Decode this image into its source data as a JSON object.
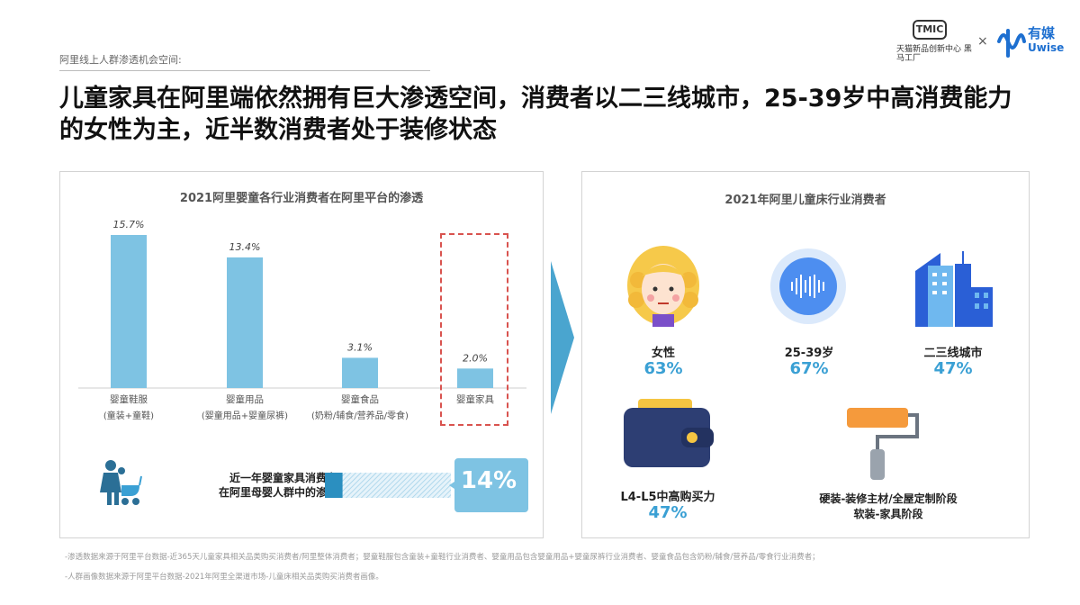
{
  "header": {
    "section_label": "阿里线上人群渗透机会空间:",
    "logo_tmic": "TMIC",
    "logo_tmic_sub": "天猫新品创新中心 黑马工厂",
    "cross": "×",
    "logo_uwise_cn": "有媒",
    "logo_uwise_en": "Uwise"
  },
  "headline": "儿童家具在阿里端依然拥有巨大渗透空间，消费者以二三线城市，25-39岁中高消费能力的女性为主，近半数消费者处于装修状态",
  "left_panel": {
    "title": "2021阿里婴童各行业消费者在阿里平台的渗透",
    "stat_text_line1": "近一年婴童家具消费者",
    "stat_text_line2": "在阿里母婴人群中的渗透",
    "stat_value": "14%",
    "stat_fraction": 0.14
  },
  "right_panel": {
    "title": "2021年阿里儿童床行业消费者",
    "items": [
      {
        "label": "女性",
        "value": "63%"
      },
      {
        "label": "25-39岁",
        "value": "67%"
      },
      {
        "label": "二三线城市",
        "value": "47%"
      },
      {
        "label": "L4-L5中高购买力",
        "value": "47%"
      },
      {
        "label_line1": "硬装-装修主材/全屋定制阶段",
        "label_line2": "软装-家具阶段"
      }
    ]
  },
  "chart_data": {
    "type": "bar",
    "title": "2021阿里婴童各行业消费者在阿里平台的渗透",
    "categories": [
      {
        "line1": "婴童鞋服",
        "line2": "(童装+童鞋)"
      },
      {
        "line1": "婴童用品",
        "line2": "(婴童用品+婴童尿裤)"
      },
      {
        "line1": "婴童食品",
        "line2": "(奶粉/辅食/营养品/零食)"
      },
      {
        "line1": "婴童家具",
        "line2": ""
      }
    ],
    "values": [
      15.7,
      13.4,
      3.1,
      2.0
    ],
    "value_labels": [
      "15.7%",
      "13.4%",
      "3.1%",
      "2.0%"
    ],
    "unit": "%",
    "highlighted_category_index": 3,
    "bar_color": "#7ec3e3",
    "highlight_border_color": "#d9534f"
  },
  "footnotes": {
    "line1": "-渗透数据来源于阿里平台数据-近365天儿童家具相关品类购买消费者/阿里整体消费者；婴童鞋服包含童装+童鞋行业消费者、婴童用品包含婴童用品+婴童尿裤行业消费者、婴童食品包含奶粉/辅食/营养品/零食行业消费者；",
    "line2": "-人群画像数据来源于阿里平台数据-2021年阿里全渠道市场-儿童床相关品类购买消费者画像。"
  },
  "colors": {
    "accent_blue": "#3aa0d4",
    "bar_blue": "#7ec3e3",
    "dark_blue": "#2b6f96",
    "highlight_red": "#d9534f"
  }
}
